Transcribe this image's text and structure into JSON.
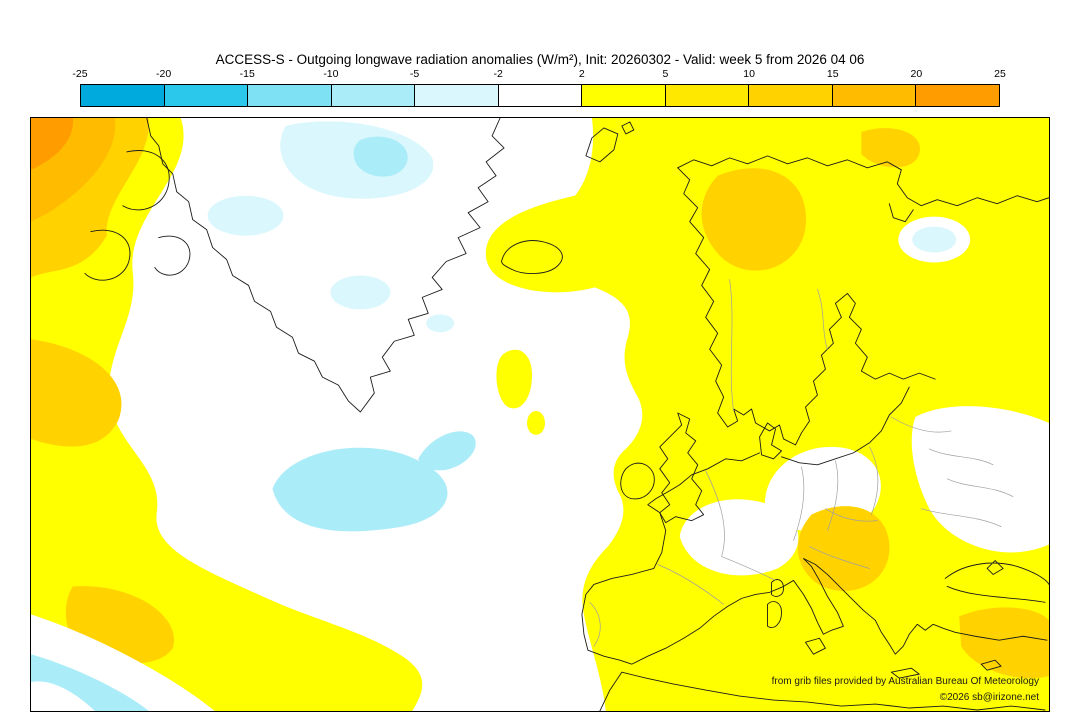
{
  "title": "ACCESS-S - Outgoing longwave radiation anomalies (W/m²), Init: 20260302 - Valid: week 5 from 2026 04 06",
  "colorbar": {
    "units": "W/m²",
    "tick_labels": [
      "-25",
      "-20",
      "-15",
      "-10",
      "-5",
      "-2",
      "2",
      "5",
      "10",
      "15",
      "20",
      "25"
    ],
    "segment_colors": [
      "#00aadc",
      "#2cc8ec",
      "#7ee2f4",
      "#aaecf8",
      "#d9f7fc",
      "#ffffff",
      "#ffff00",
      "#ffe800",
      "#ffd200",
      "#ffbb00",
      "#ff9c00"
    ]
  },
  "map": {
    "attribution_line1": "from grib files provided by Australian Bureau Of Meteorology",
    "attribution_line2": "©2026 sb@irizone.net"
  },
  "chart_data": {
    "type": "heatmap",
    "title": "ACCESS-S - Outgoing longwave radiation anomalies (W/m²), Init: 20260302 - Valid: week 5 from 2026 04 06",
    "model": "ACCESS-S",
    "variable": "Outgoing longwave radiation anomalies",
    "units": "W/m²",
    "init": "20260302",
    "valid": "week 5 from 2026 04 06",
    "colorbar_boundaries": [
      -25,
      -20,
      -15,
      -10,
      -5,
      -2,
      2,
      5,
      10,
      15,
      20,
      25
    ],
    "legend_position": "top",
    "region_summary": [
      {
        "area": "western map edge (west Atlantic)",
        "anomaly": "+5 to +20"
      },
      {
        "area": "Scandinavia and northern Europe",
        "anomaly": "+2 to +15"
      },
      {
        "area": "central and southern Europe, Mediterranean, Balkans",
        "anomaly": "+2 to +15"
      },
      {
        "area": "central North Atlantic",
        "anomaly": "-2 to -10"
      },
      {
        "area": "Arctic north of Greenland",
        "anomaly": "-2 to -10"
      },
      {
        "area": "Greenland interior and mid-Atlantic near Iberia",
        "anomaly": "-2 to +2"
      }
    ]
  }
}
